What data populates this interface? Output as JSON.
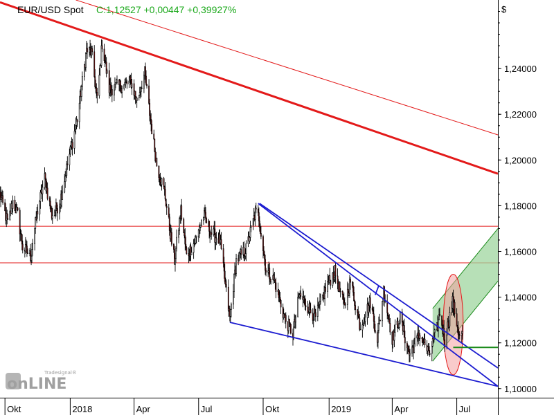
{
  "chart_data": {
    "type": "candlestick",
    "title": "EUR/USD Spot",
    "quote": "C:1,12527 +0,00447 +0,39927%",
    "currency_label": "$",
    "ylim": [
      1.096,
      1.27
    ],
    "y_ticks": [
      1.1,
      1.12,
      1.14,
      1.16,
      1.18,
      1.2,
      1.22,
      1.24
    ],
    "y_tick_labels": [
      "1,10000",
      "1,12000",
      "1,14000",
      "1,16000",
      "1,18000",
      "1,20000",
      "1,22000",
      "1,24000"
    ],
    "x_range": [
      "2017-09-25",
      "2019-08-28"
    ],
    "x_ticks": [
      {
        "date": "2017-10-02",
        "label": "Okt"
      },
      {
        "date": "2018-01-02",
        "label": "2018"
      },
      {
        "date": "2018-04-02",
        "label": "Apr"
      },
      {
        "date": "2018-07-02",
        "label": "Jul"
      },
      {
        "date": "2018-10-01",
        "label": "Okt"
      },
      {
        "date": "2019-01-02",
        "label": "2019"
      },
      {
        "date": "2019-04-01",
        "label": "Apr"
      },
      {
        "date": "2019-07-01",
        "label": "Jul"
      }
    ],
    "close_path": [
      [
        "2017-09-25",
        1.185
      ],
      [
        "2017-10-06",
        1.172
      ],
      [
        "2017-10-13",
        1.182
      ],
      [
        "2017-10-20",
        1.176
      ],
      [
        "2017-10-27",
        1.162
      ],
      [
        "2017-11-07",
        1.158
      ],
      [
        "2017-11-17",
        1.178
      ],
      [
        "2017-11-27",
        1.192
      ],
      [
        "2017-12-07",
        1.176
      ],
      [
        "2017-12-18",
        1.181
      ],
      [
        "2017-12-29",
        1.198
      ],
      [
        "2018-01-12",
        1.218
      ],
      [
        "2018-01-25",
        1.248
      ],
      [
        "2018-02-01",
        1.247
      ],
      [
        "2018-02-09",
        1.226
      ],
      [
        "2018-02-16",
        1.251
      ],
      [
        "2018-02-26",
        1.231
      ],
      [
        "2018-03-08",
        1.232
      ],
      [
        "2018-03-20",
        1.233
      ],
      [
        "2018-03-29",
        1.234
      ],
      [
        "2018-04-06",
        1.226
      ],
      [
        "2018-04-17",
        1.238
      ],
      [
        "2018-04-25",
        1.218
      ],
      [
        "2018-05-04",
        1.198
      ],
      [
        "2018-05-15",
        1.186
      ],
      [
        "2018-05-23",
        1.168
      ],
      [
        "2018-05-29",
        1.156
      ],
      [
        "2018-06-07",
        1.178
      ],
      [
        "2018-06-15",
        1.158
      ],
      [
        "2018-06-28",
        1.165
      ],
      [
        "2018-07-09",
        1.176
      ],
      [
        "2018-07-20",
        1.168
      ],
      [
        "2018-08-01",
        1.165
      ],
      [
        "2018-08-10",
        1.142
      ],
      [
        "2018-08-15",
        1.131
      ],
      [
        "2018-08-24",
        1.156
      ],
      [
        "2018-09-07",
        1.161
      ],
      [
        "2018-09-20",
        1.177
      ],
      [
        "2018-09-25",
        1.175
      ],
      [
        "2018-10-05",
        1.152
      ],
      [
        "2018-10-17",
        1.147
      ],
      [
        "2018-10-31",
        1.131
      ],
      [
        "2018-11-12",
        1.124
      ],
      [
        "2018-11-21",
        1.141
      ],
      [
        "2018-12-05",
        1.135
      ],
      [
        "2018-12-14",
        1.131
      ],
      [
        "2018-12-31",
        1.146
      ],
      [
        "2019-01-10",
        1.151
      ],
      [
        "2019-01-23",
        1.136
      ],
      [
        "2019-02-01",
        1.147
      ],
      [
        "2019-02-15",
        1.127
      ],
      [
        "2019-03-01",
        1.138
      ],
      [
        "2019-03-11",
        1.122
      ],
      [
        "2019-03-20",
        1.143
      ],
      [
        "2019-04-01",
        1.122
      ],
      [
        "2019-04-12",
        1.131
      ],
      [
        "2019-04-25",
        1.115
      ],
      [
        "2019-05-10",
        1.124
      ],
      [
        "2019-05-23",
        1.115
      ],
      [
        "2019-06-03",
        1.126
      ],
      [
        "2019-06-07",
        1.133
      ],
      [
        "2019-06-14",
        1.121
      ],
      [
        "2019-06-25",
        1.138
      ],
      [
        "2019-07-01",
        1.129
      ],
      [
        "2019-07-05",
        1.122
      ],
      [
        "2019-07-09",
        1.125
      ]
    ],
    "annotations": {
      "horizontal_lines": [
        {
          "level": 1.171,
          "color": "#e31a1a"
        },
        {
          "level": 1.155,
          "color": "#e31a1a"
        }
      ],
      "trend_lines": [
        {
          "color": "#e31a1a",
          "weight": "thick",
          "from": [
            "2017-09-25",
            1.269
          ],
          "to": [
            "2019-08-28",
            1.194
          ]
        },
        {
          "color": "#e31a1a",
          "weight": "thin",
          "from": [
            "2018-01-10",
            1.27
          ],
          "to": [
            "2019-08-28",
            1.211
          ]
        },
        {
          "color": "#1c1cd0",
          "weight": "normal",
          "from": [
            "2018-09-24",
            1.181
          ],
          "to": [
            "2019-08-28",
            1.101
          ]
        },
        {
          "color": "#1c1cd0",
          "weight": "normal",
          "from": [
            "2018-09-26",
            1.181
          ],
          "to": [
            "2019-08-28",
            1.109
          ]
        },
        {
          "color": "#1c1cd0",
          "weight": "normal",
          "from": [
            "2018-08-15",
            1.129
          ],
          "to": [
            "2019-08-28",
            1.101
          ]
        },
        {
          "color": "#1c1cd0",
          "weight": "normal",
          "from": [
            "2019-03-13",
            1.145
          ],
          "to": [
            "2019-03-08",
            1.141
          ]
        }
      ],
      "support_line": {
        "color": "#1a8a1a",
        "level": 1.118,
        "from": "2019-06-26",
        "to": "2019-08-28"
      },
      "channel": {
        "color": "#1a8a1a",
        "fill": "#9fd69f",
        "lower": [
          [
            "2019-05-28",
            1.112
          ],
          [
            "2019-08-28",
            1.147
          ]
        ],
        "upper": [
          [
            "2019-05-28",
            1.135
          ],
          [
            "2019-08-28",
            1.17
          ]
        ]
      },
      "ellipse": {
        "center": [
          "2019-06-26",
          1.128
        ],
        "span_days": 14,
        "half_height": 0.022,
        "color": "#e31a1a"
      }
    }
  },
  "logo": {
    "small": "Tradesignal®",
    "big": "onLINE"
  }
}
